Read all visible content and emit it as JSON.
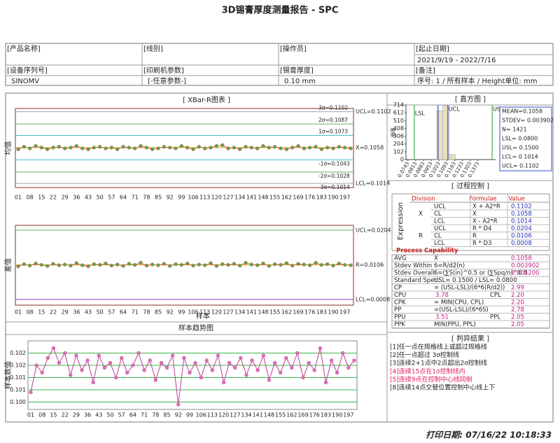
{
  "title": "3D锡膏厚度测量报告 - SPC",
  "header": {
    "row1": [
      "[产品名称]",
      "[线别]",
      "[操作员]",
      "[起止日期]"
    ],
    "date_range": "2021/9/19 - 2022/7/16",
    "row2": [
      "[设备序列号]",
      "[印刷机参数]",
      "[锡膏厚度]",
      "[备注]"
    ],
    "row3": [
      "SINOMV",
      "[-任意参数-]",
      "0.10 mm",
      "序号: 1 / 所有样本 / Height单位: mm"
    ]
  },
  "panel_titles": {
    "xbar_r": "[ XBar-R图表 ]",
    "histogram": "[ 直方图 ]",
    "process": "[ 过程控制 ]",
    "trend": "样本趋势图",
    "rules": "[ 判异结果 ]"
  },
  "chart_data": [
    {
      "type": "line",
      "ylabel": "均值",
      "categories": [
        "01",
        null,
        "08",
        null,
        "15",
        null,
        "22",
        null,
        "29",
        null,
        "36",
        null,
        "43",
        null,
        "50",
        null,
        "57",
        null,
        "64",
        null,
        "71",
        null,
        "78",
        null,
        "85",
        null,
        "92",
        null,
        "99",
        null,
        "106",
        null,
        "113",
        null,
        "120",
        null,
        "127",
        null,
        "134",
        null,
        "141",
        null,
        "148",
        null,
        "155",
        null,
        "162",
        null,
        "169",
        null,
        "176",
        null,
        "183",
        null,
        "190",
        null,
        "197",
        null
      ],
      "series": [
        {
          "color": "#e0505a",
          "marker_color": "#4caf3a",
          "values": [
            0.1056,
            0.1059,
            0.1057,
            0.106,
            0.1058,
            0.1056,
            0.1058,
            0.1059,
            0.1057,
            0.1058,
            0.106,
            0.1057,
            0.1056,
            0.1058,
            0.1059,
            0.1057,
            0.1058,
            0.1056,
            0.1059,
            0.1058,
            0.1057,
            0.106,
            0.1058,
            0.1056,
            0.1057,
            0.1059,
            0.1058,
            0.1057,
            0.106,
            0.1058,
            0.1056,
            0.1059,
            0.1057,
            0.1058,
            0.106,
            0.1061,
            0.1057,
            0.1058,
            0.1056,
            0.1059,
            0.1058,
            0.1057,
            0.106,
            0.1058,
            0.1059,
            0.1057,
            0.1056,
            0.1058,
            0.106,
            0.1057,
            0.1058,
            0.1059,
            0.1056,
            0.1058,
            0.1057,
            0.1059,
            0.1058,
            0.1057
          ]
        }
      ],
      "ylim": [
        0.1009,
        0.1106
      ],
      "control_lines": [
        {
          "value": 0.1102,
          "label": "3σ=0.1102",
          "side_label": "UCL=0.1102",
          "color": "#9aa6b8"
        },
        {
          "value": 0.1087,
          "label": "2σ=0.1087",
          "color": "#5cb85c"
        },
        {
          "value": 0.1073,
          "label": "1σ=0.1073",
          "color": "#40c0d0"
        },
        {
          "value": 0.1058,
          "side_label": "X=0.1058",
          "color": "#e0a030"
        },
        {
          "value": 0.1043,
          "label": "-1σ=0.1043",
          "color": "#40c0d0"
        },
        {
          "value": 0.1028,
          "label": "-2σ=0.1028",
          "color": "#5cb85c"
        },
        {
          "value": 0.1014,
          "label": "-3σ=0.1014",
          "side_label": "LCL=0.1014",
          "color": "#9aa6b8"
        }
      ]
    },
    {
      "type": "line",
      "ylabel": "差值",
      "xlabel": "样本",
      "categories": [
        "01",
        null,
        "08",
        null,
        "15",
        null,
        "22",
        null,
        "29",
        null,
        "36",
        null,
        "43",
        null,
        "50",
        null,
        "57",
        null,
        "64",
        null,
        "71",
        null,
        "78",
        null,
        "85",
        null,
        "92",
        null,
        "99",
        null,
        "106",
        null,
        "113",
        null,
        "120",
        null,
        "127",
        null,
        "134",
        null,
        "141",
        null,
        "148",
        null,
        "155",
        null,
        "162",
        null,
        "169",
        null,
        "176",
        null,
        "183",
        null,
        "190",
        null,
        "197",
        null
      ],
      "series": [
        {
          "color": "#e0505a",
          "marker_color": "#4caf3a",
          "values": [
            0.0102,
            0.0108,
            0.0104,
            0.011,
            0.0106,
            0.0103,
            0.0109,
            0.0105,
            0.0107,
            0.0104,
            0.0111,
            0.0105,
            0.0102,
            0.0108,
            0.0106,
            0.011,
            0.0104,
            0.0107,
            0.0103,
            0.0109,
            0.0106,
            0.0112,
            0.0104,
            0.0107,
            0.0105,
            0.0109,
            0.0103,
            0.0108,
            0.0106,
            0.011,
            0.0104,
            0.0107,
            0.0105,
            0.0111,
            0.0103,
            0.0108,
            0.0106,
            0.0109,
            0.0104,
            0.0112,
            0.0107,
            0.0105,
            0.011,
            0.0103,
            0.0108,
            0.0106,
            0.0111,
            0.0104,
            0.0109,
            0.0107,
            0.0105,
            0.0112,
            0.0106,
            0.0108,
            0.0104,
            0.011,
            0.0106,
            0.0105
          ]
        }
      ],
      "ylim": [
        -0.0008,
        0.0218
      ],
      "control_lines": [
        {
          "value": 0.0204,
          "side_label": "UCL=0.0204",
          "color": "#5cb85c"
        },
        {
          "value": 0.0106,
          "side_label": "R=0.0106",
          "color": "#e0a030"
        },
        {
          "value": 0.0008,
          "side_label": "LCL=0.0008",
          "color": "#8040c0"
        }
      ]
    },
    {
      "type": "line",
      "ylabel": "样本数值",
      "categories": [
        "01",
        null,
        "08",
        null,
        "15",
        null,
        "22",
        null,
        "29",
        null,
        "36",
        null,
        "43",
        null,
        "50",
        null,
        "57",
        null,
        "64",
        null,
        "71",
        null,
        "78",
        null,
        "85",
        null,
        "92",
        null,
        "99",
        null,
        "106",
        null,
        "113",
        null,
        "120",
        null,
        "127",
        null,
        "134",
        null,
        "141",
        null,
        "148",
        null,
        "155",
        null,
        "162",
        null,
        "169",
        null,
        "176",
        null,
        "183",
        null,
        "190",
        null,
        "197",
        null
      ],
      "series": [
        {
          "color": "#c0389a",
          "marker_color": "#e070b8",
          "values": [
            0.1004,
            0.1015,
            0.1012,
            0.1018,
            0.1022,
            0.1016,
            0.102,
            0.1011,
            0.1019,
            0.1013,
            0.1017,
            0.1008,
            0.1019,
            0.1014,
            0.1016,
            0.101,
            0.1018,
            0.1012,
            0.1015,
            0.102,
            0.1013,
            0.1017,
            0.1009,
            0.1016,
            0.1014,
            0.1019,
            0.0999,
            0.1018,
            0.1012,
            0.1016,
            0.101,
            0.1017,
            0.1013,
            0.1019,
            0.1008,
            0.1016,
            0.1014,
            0.1018,
            0.1011,
            0.1017,
            0.1013,
            0.1019,
            0.1009,
            0.1016,
            0.1012,
            0.1018,
            0.1014,
            0.102,
            0.101,
            0.1016,
            0.1013,
            0.1022,
            0.1008,
            0.1017,
            0.1012,
            0.102,
            0.1014,
            0.1017
          ]
        }
      ],
      "ylim": [
        0.0997,
        0.1025
      ],
      "yticks": [
        {
          "value": 0.1,
          "label": "0.100"
        },
        {
          "value": 0.1005,
          "label": "0.101"
        },
        {
          "value": 0.101,
          "label": "0.101"
        },
        {
          "value": 0.1015,
          "label": "0.102"
        },
        {
          "value": 0.102,
          "label": "0.102"
        }
      ],
      "grid": true,
      "grid_color": "#3cb34a"
    },
    {
      "type": "histogram",
      "ylabel": "频率",
      "color": "#e8dfc0",
      "bins": [
        0.0948,
        0.1003,
        0.1058,
        0.1113,
        0.1168
      ],
      "counts": [
        6,
        640,
        710,
        65
      ],
      "xlim": [
        0.0726,
        0.1531
      ],
      "xticks": [
        0.0743,
        0.0813,
        0.0883,
        0.0953,
        0.1023,
        0.1093,
        0.1163,
        0.1233,
        0.1303,
        0.1373
      ],
      "ylim": [
        0,
        714
      ],
      "yticks": [
        0,
        102,
        204,
        306,
        408,
        510,
        612,
        714
      ],
      "ref_lines": [
        {
          "value": 0.08,
          "label": "LSL",
          "color": "#3cb34a"
        },
        {
          "value": 0.15,
          "label": "US",
          "color": "#3cb34a"
        },
        {
          "value": 0.1014,
          "color": "#3050d0"
        },
        {
          "value": 0.1102,
          "label": "UCL",
          "color": "#3050d0"
        }
      ]
    }
  ],
  "stats": [
    "MEAN=0.1058",
    "STDEV= 0.003902",
    "N= 1421",
    "LSL= 0.0800",
    "USL= 0.1500",
    "LCL= 0.1014",
    "UCL= 0.1102"
  ],
  "process_control": {
    "expression_label": "Expression",
    "headers": [
      "Division",
      "Formulae",
      "Value"
    ],
    "expression_rows": [
      {
        "group": "X",
        "limit": "UCL",
        "formula": "X + A2*R",
        "value": "0.1102"
      },
      {
        "limit": "CL",
        "formula": "X",
        "value": "0.1058"
      },
      {
        "limit": "LCL",
        "formula": "X - A2*R",
        "value": "0.1014"
      },
      {
        "group": "R",
        "limit": "UCL",
        "formula": "R * D4",
        "value": "0.0204"
      },
      {
        "limit": "CL",
        "formula": "R",
        "value": "0.0106"
      },
      {
        "limit": "LCL",
        "formula": "R * D3",
        "value": "0.0008"
      }
    ],
    "capability_title": "Process Capability",
    "capability_rows": [
      [
        "AVG",
        "X",
        "0.1058"
      ],
      [
        "Stdev Within",
        "6=R/d2(n)",
        "0.003902"
      ],
      [
        "Stdev Overall",
        "6=(∑S(in)^0.5 or (∑Spq/n)^0.5",
        "0.004200"
      ],
      [
        "Standard Spec.",
        "USL= 0.1500 / LSL= 0.0800"
      ],
      [
        "CP",
        "= (USL-LSL)/(6*6(R/d2))",
        "2.99"
      ],
      [
        "CPU",
        "3.78",
        "CPL",
        "2.20"
      ],
      [
        "CPK",
        "= MIN(CPU, CPL)",
        "2.20"
      ],
      [
        "PP",
        "=(USL-LSL)/(6*6S)",
        "2.78"
      ],
      [
        "PPU",
        "3.51",
        "PPL",
        "2.05"
      ],
      [
        "PPK",
        "MIN(PPU, PPL)",
        "2.05"
      ]
    ]
  },
  "rules": [
    {
      "text": "[1]任一点在规格线上或超过规格线",
      "color": "#222222"
    },
    {
      "text": "[2]任一点超过 3σ控制线",
      "color": "#222222"
    },
    {
      "text": "[3]连续2+1点中2点超出2σ控制线",
      "color": "#222222"
    },
    {
      "text": "[4]连续15点在1σ控制线内",
      "color": "#e0205a"
    },
    {
      "text": "[5]连续9点在控制中心线同侧",
      "color": "#e0205a"
    },
    {
      "text": "[8]连续14点交替位置控制中心线上下",
      "color": "#222222"
    }
  ],
  "print_date": "打印日期: 07/16/22 10:18:33"
}
